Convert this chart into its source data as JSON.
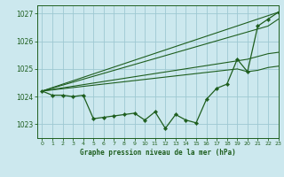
{
  "bg_color": "#cce8ee",
  "grid_color": "#9ec8d2",
  "line_color": "#1e5e1e",
  "xlabel": "Graphe pression niveau de la mer (hPa)",
  "ylim": [
    1022.5,
    1027.3
  ],
  "xlim": [
    -0.5,
    23
  ],
  "yticks": [
    1023,
    1024,
    1025,
    1026,
    1027
  ],
  "xticks": [
    0,
    1,
    2,
    3,
    4,
    5,
    6,
    7,
    8,
    9,
    10,
    11,
    12,
    13,
    14,
    15,
    16,
    17,
    18,
    19,
    20,
    21,
    22,
    23
  ],
  "main_x": [
    0,
    1,
    2,
    3,
    4,
    5,
    6,
    7,
    8,
    9,
    10,
    11,
    12,
    13,
    14,
    15,
    16,
    17,
    18,
    19,
    20,
    21,
    22,
    23
  ],
  "main_y": [
    1024.2,
    1024.05,
    1024.05,
    1024.0,
    1024.05,
    1023.2,
    1023.25,
    1023.3,
    1023.35,
    1023.4,
    1023.15,
    1023.45,
    1022.85,
    1023.35,
    1023.15,
    1023.05,
    1023.9,
    1024.3,
    1024.45,
    1025.35,
    1024.9,
    1026.55,
    1026.8,
    1027.05
  ],
  "trend1_x": [
    0,
    23
  ],
  "trend1_y": [
    1024.2,
    1027.05
  ],
  "trend2_x": [
    0,
    22,
    23
  ],
  "trend2_y": [
    1024.2,
    1026.55,
    1026.8
  ],
  "trend3_x": [
    0,
    20,
    21,
    22,
    23
  ],
  "trend3_y": [
    1024.2,
    1025.35,
    1025.45,
    1025.55,
    1025.6
  ],
  "trend4_x": [
    0,
    19,
    20,
    21,
    22,
    23
  ],
  "trend4_y": [
    1024.2,
    1025.0,
    1024.9,
    1024.95,
    1025.05,
    1025.1
  ]
}
